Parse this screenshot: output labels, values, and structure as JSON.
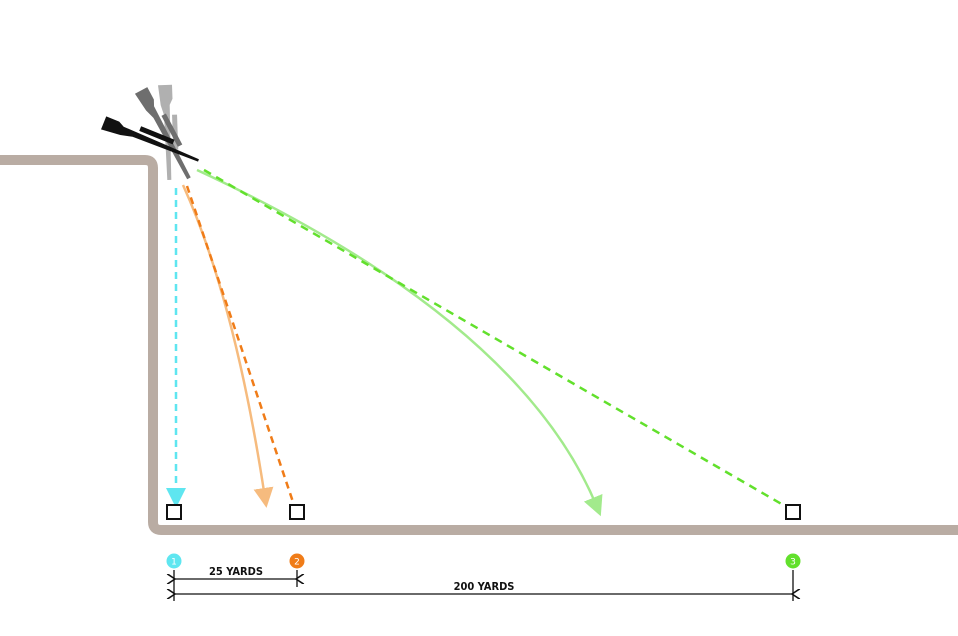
{
  "colors": {
    "wall": "#b9aca3",
    "cyan": "#5fe6f0",
    "orange": "#f07c18",
    "orange_light": "#f6bb7e",
    "green": "#62e02c",
    "green_light": "#a2ea8c",
    "rifle_black": "#111111",
    "rifle_gray": "#6e6e6e",
    "rifle_lightgray": "#b0b0b0"
  },
  "targets": [
    {
      "marker": "1",
      "color": "#5fe6f0"
    },
    {
      "marker": "2",
      "color": "#f07c18"
    },
    {
      "marker": "3",
      "color": "#62e02c"
    }
  ],
  "dimensions": {
    "short_label": "25 YARDS",
    "long_label": "200 YARDS"
  },
  "icons": [
    "rifle-icon",
    "target-square-icon",
    "arrow-icon"
  ]
}
